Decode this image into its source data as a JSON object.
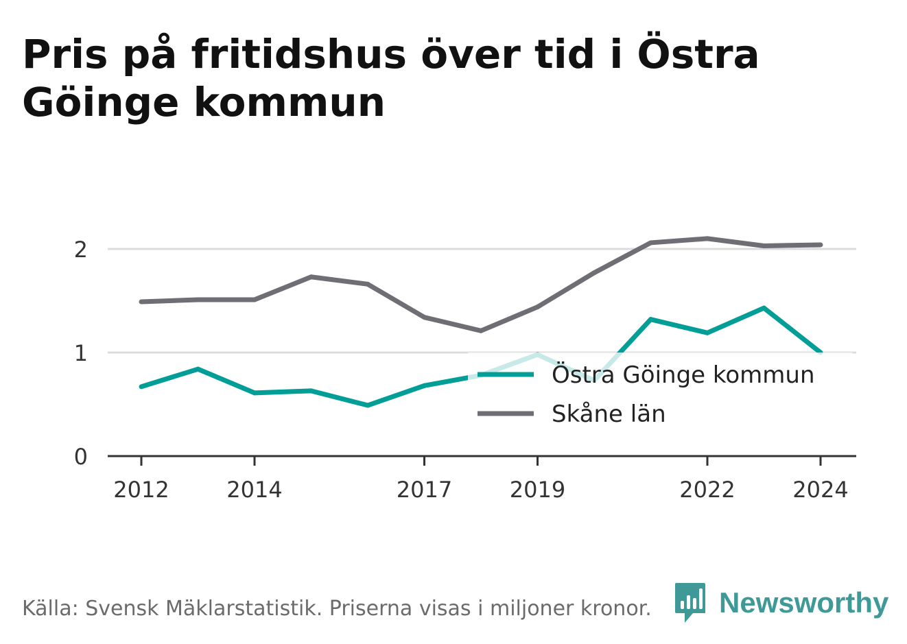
{
  "title": "Pris på fritidshus över tid i Östra Göinge kommun",
  "source": "Källa: Svensk Mäklarstatistik. Priserna visas i miljoner kronor.",
  "brand": {
    "name": "Newsworthy",
    "icon": "newsworthy-logo-icon",
    "color": "#3f9a97"
  },
  "chart_data": {
    "type": "line",
    "title": "Pris på fritidshus över tid i Östra Göinge kommun",
    "xlabel": "",
    "ylabel": "",
    "x": [
      2012,
      2013,
      2014,
      2015,
      2016,
      2017,
      2018,
      2019,
      2020,
      2021,
      2022,
      2023,
      2024
    ],
    "x_ticks": [
      "2012",
      "2014",
      "2017",
      "2019",
      "2022",
      "2024"
    ],
    "y_ticks": [
      "0",
      "1",
      "2"
    ],
    "ylim": [
      0,
      2.3
    ],
    "grid": true,
    "legend_position": "lower-right",
    "series": [
      {
        "name": "Östra Göinge kommun",
        "color": "#009e96",
        "values": [
          0.67,
          0.84,
          0.61,
          0.63,
          0.49,
          0.68,
          0.78,
          0.98,
          0.73,
          1.32,
          1.19,
          1.43,
          1.0
        ]
      },
      {
        "name": "Skåne län",
        "color": "#6f6e75",
        "values": [
          1.49,
          1.51,
          1.51,
          1.73,
          1.66,
          1.34,
          1.21,
          1.44,
          1.77,
          2.06,
          2.1,
          2.03,
          2.04
        ]
      }
    ]
  }
}
